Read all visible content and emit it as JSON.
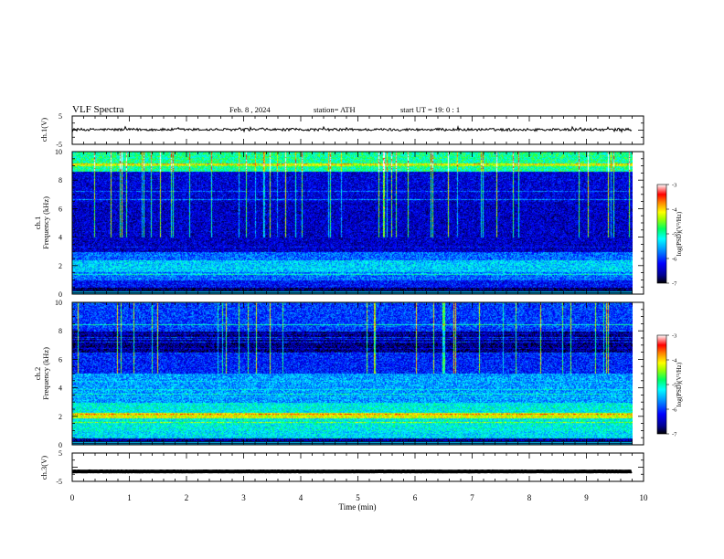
{
  "header": {
    "title": "VLF  Spectra",
    "date": "Feb. 8  , 2024",
    "station": "station= ATH",
    "start_ut": "start  UT  =    19: 0   : 1"
  },
  "chart_data": [
    {
      "id": "ch1-waveform",
      "type": "line",
      "ylabel": "ch.1(V)",
      "y_ticks": [
        "5",
        "-5"
      ],
      "ylim": [
        -5,
        5
      ],
      "xlim": [
        0,
        10
      ],
      "data_xmax": 9.8,
      "baseline": 0.2,
      "noise_amplitude": 0.45,
      "color": "#000000"
    },
    {
      "id": "ch1-spectrogram",
      "type": "heatmap",
      "ylabel": "Frequency  (kHz)",
      "channel_label": "ch.1",
      "y_ticks": [
        "0",
        "2",
        "4",
        "6",
        "8",
        "10"
      ],
      "ylim": [
        0,
        10
      ],
      "xlim": [
        0,
        10
      ],
      "data_xmax": 9.8,
      "colorbar": {
        "label": "log(PSD)(V²/Hz)",
        "ticks": [
          "-3",
          "-4",
          "-5",
          "-6",
          "-7"
        ],
        "range": [
          -7,
          -3
        ]
      }
    },
    {
      "id": "ch2-spectrogram",
      "type": "heatmap",
      "ylabel": "Frequency  (kHz)",
      "channel_label": "ch.2",
      "y_ticks": [
        "0",
        "2",
        "4",
        "6",
        "8",
        "10"
      ],
      "ylim": [
        0,
        10
      ],
      "xlim": [
        0,
        10
      ],
      "data_xmax": 9.8,
      "colorbar": {
        "label": "log(PSD)(V²/Hz)",
        "ticks": [
          "-3",
          "-4",
          "-5",
          "-6",
          "-7"
        ],
        "range": [
          -7,
          -3
        ]
      }
    },
    {
      "id": "ch3-waveform",
      "type": "line",
      "ylabel": "ch.3(V)",
      "y_ticks": [
        "5",
        "-5"
      ],
      "ylim": [
        -5,
        5
      ],
      "xlim": [
        0,
        10
      ],
      "data_xmax": 9.8,
      "baseline": -1.5,
      "noise_amplitude": 0.05,
      "color": "#000000"
    }
  ],
  "x_axis": {
    "label": "Time  (min)",
    "ticks": [
      "0",
      "1",
      "2",
      "3",
      "4",
      "5",
      "6",
      "7",
      "8",
      "9",
      "10"
    ],
    "range": [
      0,
      10
    ]
  },
  "colors": {
    "colormap": [
      "#000000",
      "#000080",
      "#0000ff",
      "#00a0ff",
      "#00ffff",
      "#00ff80",
      "#80ff00",
      "#ffff00",
      "#ff8000",
      "#ff0000",
      "#ffffff"
    ]
  }
}
